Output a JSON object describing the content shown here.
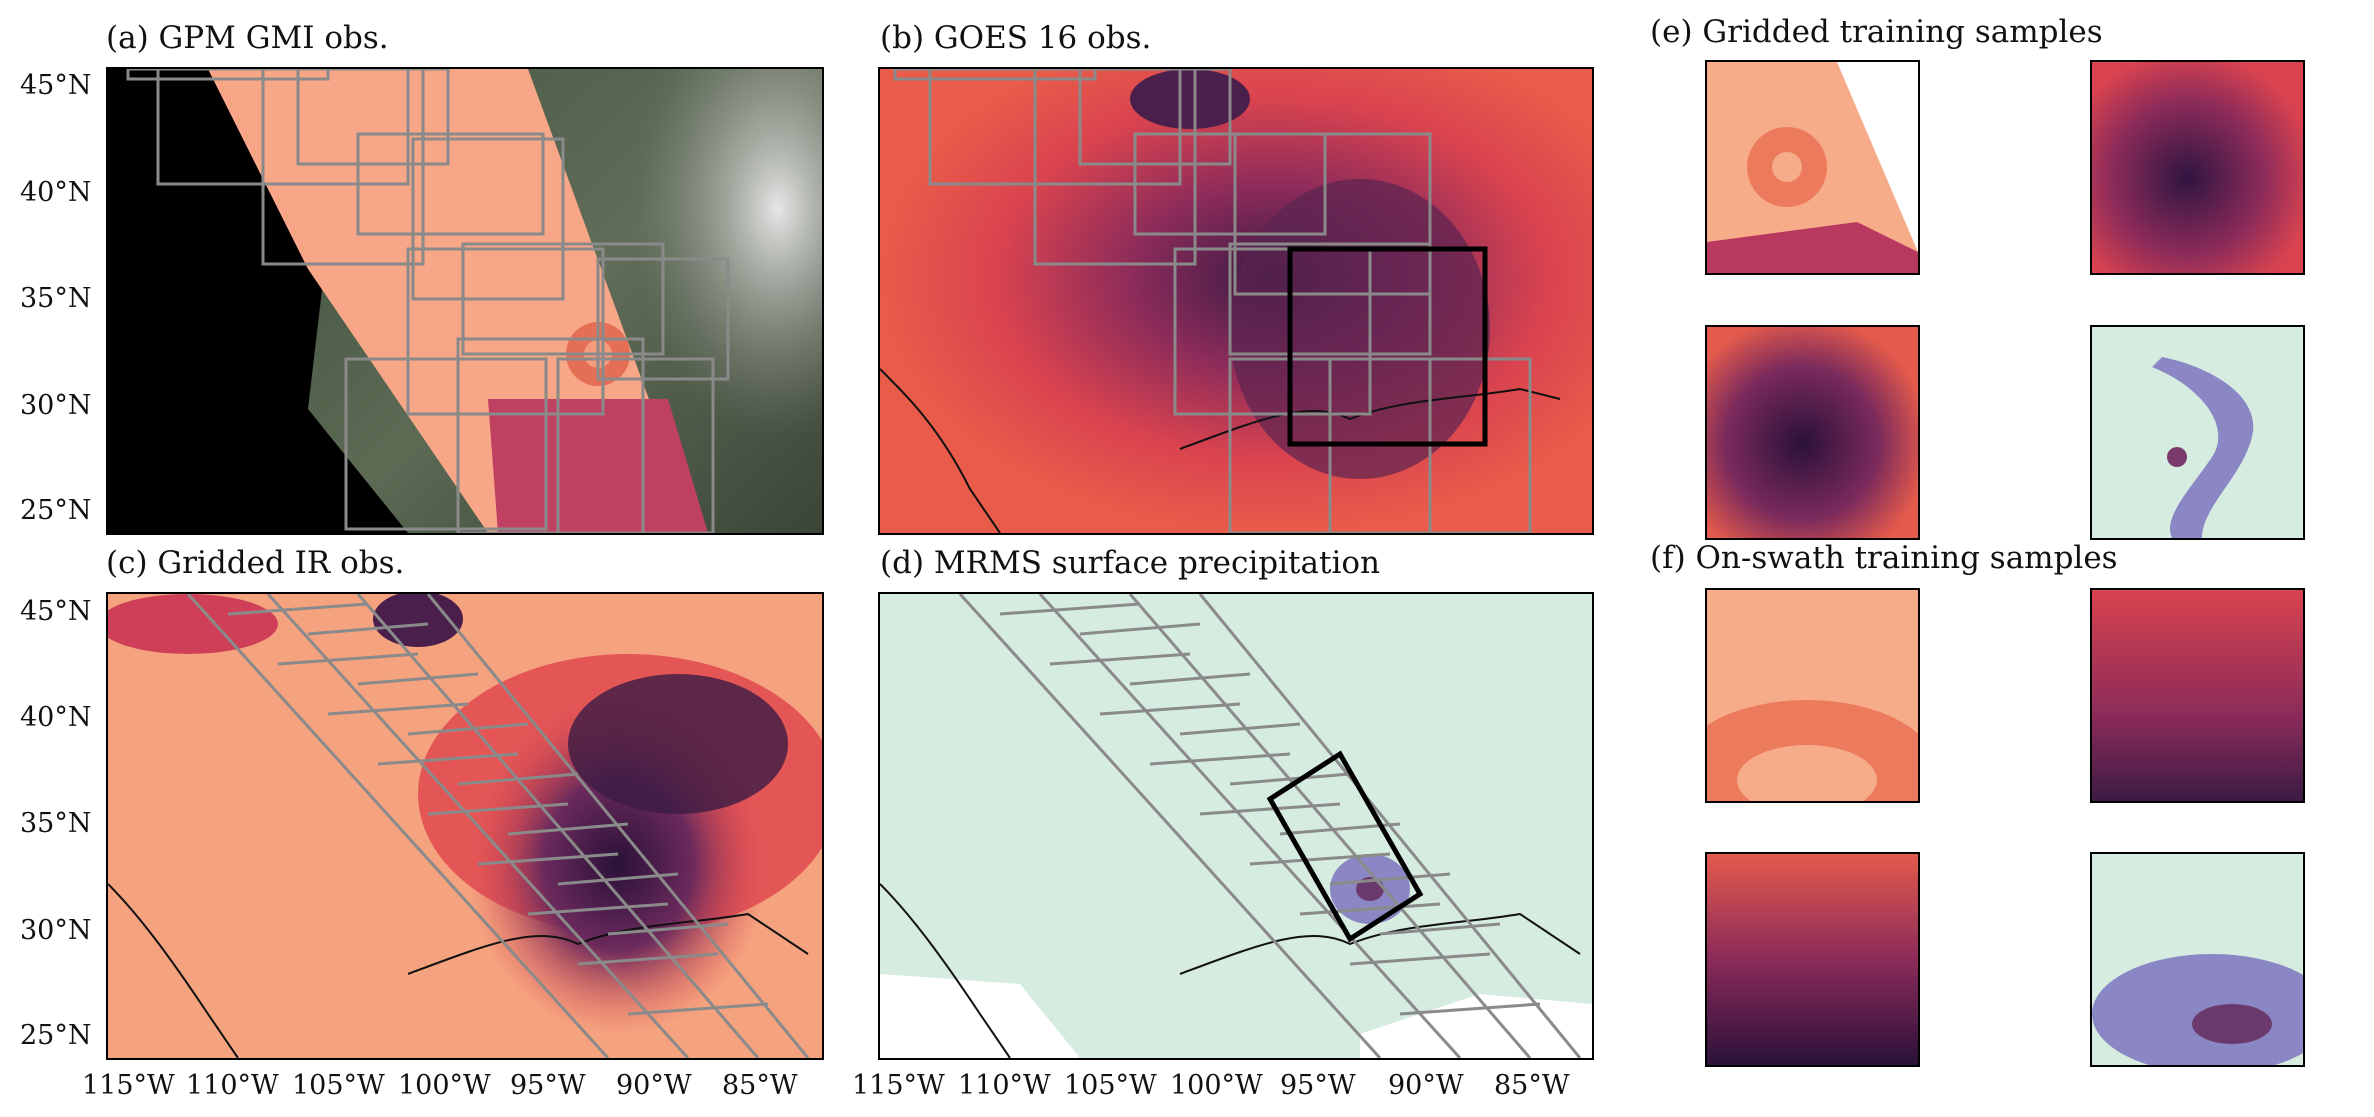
{
  "panels": {
    "a": "(a) GPM GMI obs.",
    "b": "(b) GOES 16 obs.",
    "c": "(c) Gridded IR obs.",
    "d": "(d) MRMS surface precipitation",
    "e": "(e) Gridded training samples",
    "f": "(f) On-swath training samples"
  },
  "axes": {
    "lat_ticks": [
      "45°N",
      "40°N",
      "35°N",
      "30°N",
      "25°N"
    ],
    "lon_ticks": [
      "115°W",
      "110°W",
      "105°W",
      "100°W",
      "95°W",
      "90°W",
      "85°W"
    ]
  },
  "colors": {
    "ir_light": "#f6a582",
    "ir_mid": "#e4534b",
    "ir_dark": "#3b1b43",
    "precip_bg": "#d6ece0",
    "precip_rain": "#8b87c4",
    "box_gray": "#808080",
    "box_black": "#000000"
  }
}
